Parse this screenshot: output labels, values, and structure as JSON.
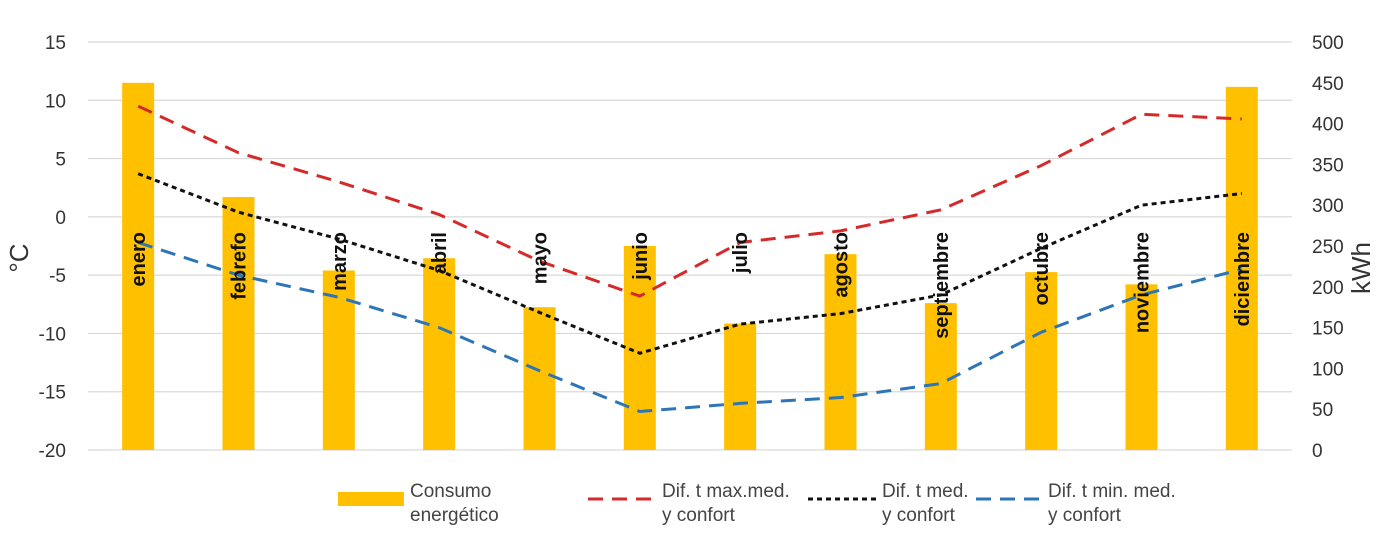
{
  "chart_data": {
    "type": "bar",
    "categories": [
      "enero",
      "febrefo",
      "marzo",
      "abril",
      "mayo",
      "junio",
      "julio",
      "agosto",
      "septiembre",
      "octubre",
      "noviembre",
      "diciembre"
    ],
    "y_left": {
      "label": "°C",
      "range": [
        -20,
        15
      ],
      "ticks": [
        15,
        10,
        5,
        0,
        -5,
        -10,
        -15,
        -20
      ]
    },
    "y_right": {
      "label": "kWh",
      "range": [
        0,
        500
      ],
      "ticks": [
        500,
        450,
        400,
        350,
        300,
        250,
        200,
        150,
        100,
        50,
        0
      ]
    },
    "gridlines": true,
    "series": [
      {
        "name": "Consumo energético",
        "legend_lines": [
          "Consumo",
          "energético"
        ],
        "kind": "bar",
        "axis": "right",
        "color": "#FFC000",
        "values": [
          450,
          310,
          220,
          235,
          175,
          250,
          155,
          240,
          180,
          218,
          203,
          445
        ]
      },
      {
        "name": "Dif. t max.med. y confort",
        "legend_lines": [
          "Dif. t max.med.",
          "y confort"
        ],
        "kind": "line",
        "dash": "long",
        "axis": "left",
        "color": "#D42A2A",
        "values": [
          9.5,
          5.5,
          3.0,
          0.2,
          -3.8,
          -6.8,
          -2.2,
          -1.2,
          0.6,
          4.4,
          8.8,
          8.4
        ]
      },
      {
        "name": "Dif. t med. y confort",
        "legend_lines": [
          "Dif. t med.",
          "y confort"
        ],
        "kind": "line",
        "dash": "short",
        "axis": "left",
        "color": "#111111",
        "values": [
          3.7,
          0.4,
          -1.9,
          -4.6,
          -8.2,
          -11.7,
          -9.2,
          -8.3,
          -6.7,
          -2.7,
          1.0,
          2.0
        ]
      },
      {
        "name": "Dif. t min. med. y confort",
        "legend_lines": [
          "Dif. t min. med.",
          "y confort"
        ],
        "kind": "line",
        "dash": "long",
        "axis": "left",
        "color": "#2E75B6",
        "values": [
          -2.2,
          -5.0,
          -6.9,
          -9.5,
          -13.2,
          -16.7,
          -16.0,
          -15.5,
          -14.3,
          -9.9,
          -6.7,
          -4.5
        ]
      }
    ]
  }
}
